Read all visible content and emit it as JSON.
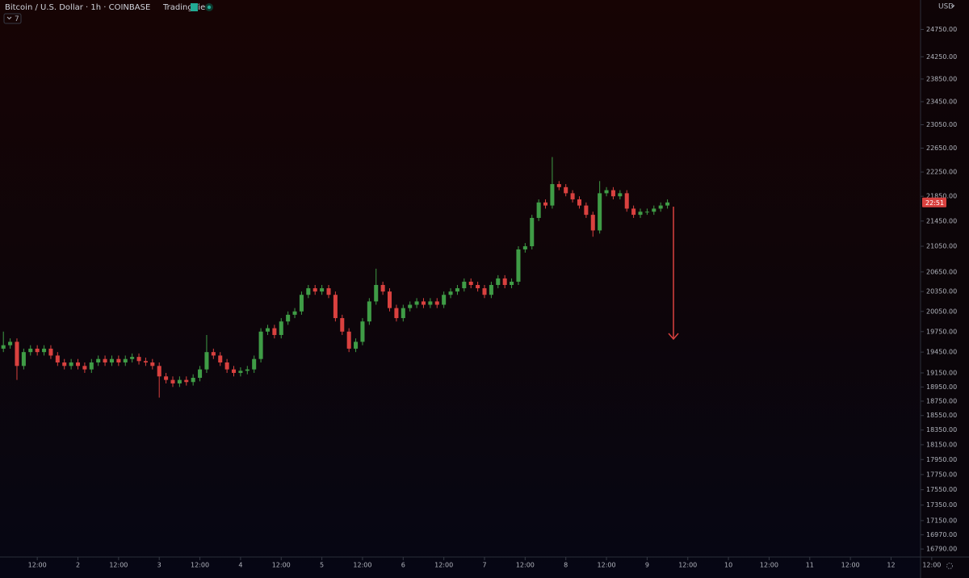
{
  "chart_data": {
    "type": "candlestick",
    "title": "Bitcoin / U.S. Dollar · 1h · COINBASE",
    "source": "TradingView",
    "indicator_count": "7",
    "currency": "USD",
    "countdown": "22:51",
    "up_color": "#3f9c46",
    "down_color": "#d9413f",
    "grid": false,
    "log_scale": true,
    "xlim": [
      1,
      287
    ],
    "ylim": [
      16690,
      25300
    ],
    "xticks": [
      {
        "value": 12,
        "label": "12:00"
      },
      {
        "value": 24,
        "label": "2"
      },
      {
        "value": 36,
        "label": "12:00"
      },
      {
        "value": 48,
        "label": "3"
      },
      {
        "value": 60,
        "label": "12:00"
      },
      {
        "value": 72,
        "label": "4"
      },
      {
        "value": 84,
        "label": "12:00"
      },
      {
        "value": 96,
        "label": "5"
      },
      {
        "value": 108,
        "label": "12:00"
      },
      {
        "value": 120,
        "label": "6"
      },
      {
        "value": 132,
        "label": "12:00"
      },
      {
        "value": 144,
        "label": "7"
      },
      {
        "value": 156,
        "label": "12:00"
      },
      {
        "value": 168,
        "label": "8"
      },
      {
        "value": 180,
        "label": "12:00"
      },
      {
        "value": 192,
        "label": "9"
      },
      {
        "value": 204,
        "label": "12:00"
      },
      {
        "value": 216,
        "label": "10"
      },
      {
        "value": 228,
        "label": "12:00"
      },
      {
        "value": 240,
        "label": "11"
      },
      {
        "value": 252,
        "label": "12:00"
      },
      {
        "value": 264,
        "label": "12"
      },
      {
        "value": 276,
        "label": "12:00"
      }
    ],
    "yticks": [
      {
        "value": 24750,
        "label": "24750.00"
      },
      {
        "value": 24250,
        "label": "24250.00"
      },
      {
        "value": 23850,
        "label": "23850.00"
      },
      {
        "value": 23450,
        "label": "23450.00"
      },
      {
        "value": 23050,
        "label": "23050.00"
      },
      {
        "value": 22650,
        "label": "22650.00"
      },
      {
        "value": 22250,
        "label": "22250.00"
      },
      {
        "value": 21850,
        "label": "21850.00"
      },
      {
        "value": 21450,
        "label": "21450.00"
      },
      {
        "value": 21050,
        "label": "21050.00"
      },
      {
        "value": 20650,
        "label": "20650.00"
      },
      {
        "value": 20350,
        "label": "20350.00"
      },
      {
        "value": 20050,
        "label": "20050.00"
      },
      {
        "value": 19750,
        "label": "19750.00"
      },
      {
        "value": 19450,
        "label": "19450.00"
      },
      {
        "value": 19150,
        "label": "19150.00"
      },
      {
        "value": 18950,
        "label": "18950.00"
      },
      {
        "value": 18750,
        "label": "18750.00"
      },
      {
        "value": 18550,
        "label": "18550.00"
      },
      {
        "value": 18350,
        "label": "18350.00"
      },
      {
        "value": 18150,
        "label": "18150.00"
      },
      {
        "value": 17950,
        "label": "17950.00"
      },
      {
        "value": 17750,
        "label": "17750.00"
      },
      {
        "value": 17550,
        "label": "17550.00"
      },
      {
        "value": 17350,
        "label": "17350.00"
      },
      {
        "value": 17150,
        "label": "17150.00"
      },
      {
        "value": 16970,
        "label": "16970.00"
      },
      {
        "value": 16790,
        "label": "16790.00"
      }
    ],
    "x": [
      2,
      4,
      6,
      8,
      10,
      12,
      14,
      16,
      18,
      20,
      22,
      24,
      26,
      28,
      30,
      32,
      34,
      36,
      38,
      40,
      42,
      44,
      46,
      48,
      50,
      52,
      54,
      56,
      58,
      60,
      62,
      64,
      66,
      68,
      70,
      72,
      74,
      76,
      78,
      80,
      82,
      84,
      86,
      88,
      90,
      92,
      94,
      96,
      98,
      100,
      102,
      104,
      106,
      108,
      110,
      112,
      114,
      116,
      118,
      120,
      122,
      124,
      126,
      128,
      130,
      132,
      134,
      136,
      138,
      140,
      142,
      144,
      146,
      148,
      150,
      152,
      154,
      156,
      158,
      160,
      162,
      164,
      166,
      168,
      170,
      172,
      174,
      176,
      178,
      180,
      182,
      184,
      186,
      188,
      190,
      192,
      194,
      196,
      198
    ],
    "open": [
      19500,
      19550,
      19600,
      19250,
      19450,
      19500,
      19450,
      19500,
      19400,
      19300,
      19250,
      19300,
      19250,
      19200,
      19300,
      19350,
      19300,
      19350,
      19300,
      19350,
      19380,
      19320,
      19300,
      19250,
      19100,
      19050,
      19000,
      19050,
      19020,
      19080,
      19200,
      19450,
      19400,
      19300,
      19200,
      19150,
      19180,
      19200,
      19350,
      19750,
      19800,
      19700,
      19900,
      20000,
      20050,
      20300,
      20400,
      20350,
      20400,
      20300,
      19950,
      19750,
      19500,
      19600,
      19900,
      20200,
      20450,
      20350,
      20100,
      19950,
      20100,
      20150,
      20200,
      20150,
      20200,
      20150,
      20300,
      20350,
      20400,
      20500,
      20450,
      20400,
      20300,
      20450,
      20550,
      20450,
      20500,
      21000,
      21050,
      21500,
      21750,
      21700,
      22050,
      22000,
      21900,
      21800,
      21700,
      21550,
      21300,
      21900,
      21950,
      21850,
      21900,
      21650,
      21550,
      21600,
      21600,
      21650,
      21700
    ],
    "high": [
      19750,
      19650,
      19650,
      19500,
      19550,
      19550,
      19550,
      19550,
      19450,
      19350,
      19350,
      19350,
      19300,
      19350,
      19400,
      19400,
      19400,
      19400,
      19400,
      19430,
      19430,
      19370,
      19350,
      19300,
      19150,
      19100,
      19100,
      19100,
      19130,
      19250,
      19700,
      19500,
      19450,
      19350,
      19250,
      19230,
      19250,
      19400,
      19800,
      19850,
      19850,
      19950,
      20050,
      20100,
      20350,
      20450,
      20450,
      20450,
      20450,
      20350,
      20000,
      19800,
      19650,
      19950,
      20250,
      20700,
      20500,
      20400,
      20150,
      20150,
      20200,
      20250,
      20250,
      20250,
      20250,
      20350,
      20400,
      20450,
      20550,
      20550,
      20500,
      20450,
      20500,
      20600,
      20600,
      20550,
      21050,
      21100,
      21550,
      21800,
      21800,
      22500,
      22100,
      22050,
      21950,
      21850,
      21750,
      21600,
      22100,
      22000,
      22000,
      21950,
      21950,
      21700,
      21650,
      21650,
      21700,
      21750,
      21800
    ],
    "low": [
      19450,
      19500,
      19050,
      19200,
      19400,
      19400,
      19400,
      19350,
      19250,
      19200,
      19200,
      19200,
      19150,
      19150,
      19250,
      19250,
      19250,
      19250,
      19250,
      19300,
      19270,
      19250,
      19200,
      18800,
      19000,
      18950,
      18950,
      18970,
      18970,
      19030,
      19150,
      19350,
      19250,
      19150,
      19100,
      19100,
      19130,
      19150,
      19300,
      19700,
      19650,
      19650,
      19850,
      19950,
      20000,
      20250,
      20300,
      20300,
      20250,
      19900,
      19700,
      19450,
      19450,
      19550,
      19850,
      20150,
      20300,
      20050,
      19900,
      19900,
      20050,
      20100,
      20100,
      20100,
      20100,
      20100,
      20250,
      20300,
      20350,
      20400,
      20350,
      20250,
      20250,
      20400,
      20400,
      20400,
      20450,
      20950,
      21000,
      21450,
      21650,
      21650,
      21950,
      21850,
      21750,
      21650,
      21500,
      21200,
      21250,
      21850,
      21800,
      21800,
      21600,
      21500,
      21500,
      21550,
      21550,
      21600,
      21650
    ],
    "close": [
      19550,
      19600,
      19250,
      19450,
      19500,
      19450,
      19500,
      19400,
      19300,
      19250,
      19300,
      19250,
      19200,
      19300,
      19350,
      19300,
      19350,
      19300,
      19350,
      19380,
      19320,
      19300,
      19250,
      19100,
      19050,
      19000,
      19050,
      19020,
      19080,
      19200,
      19450,
      19400,
      19300,
      19200,
      19150,
      19180,
      19200,
      19350,
      19750,
      19800,
      19700,
      19900,
      20000,
      20050,
      20300,
      20400,
      20350,
      20400,
      20300,
      19950,
      19750,
      19500,
      19600,
      19900,
      20200,
      20450,
      20350,
      20100,
      19950,
      20100,
      20150,
      20200,
      20150,
      20200,
      20150,
      20300,
      20350,
      20400,
      20500,
      20450,
      20400,
      20300,
      20450,
      20550,
      20450,
      20500,
      21000,
      21050,
      21500,
      21750,
      21700,
      22050,
      22000,
      21900,
      21800,
      21700,
      21550,
      21300,
      21900,
      21950,
      21850,
      21900,
      21650,
      21550,
      21600,
      21600,
      21650,
      21700,
      21750
    ]
  }
}
